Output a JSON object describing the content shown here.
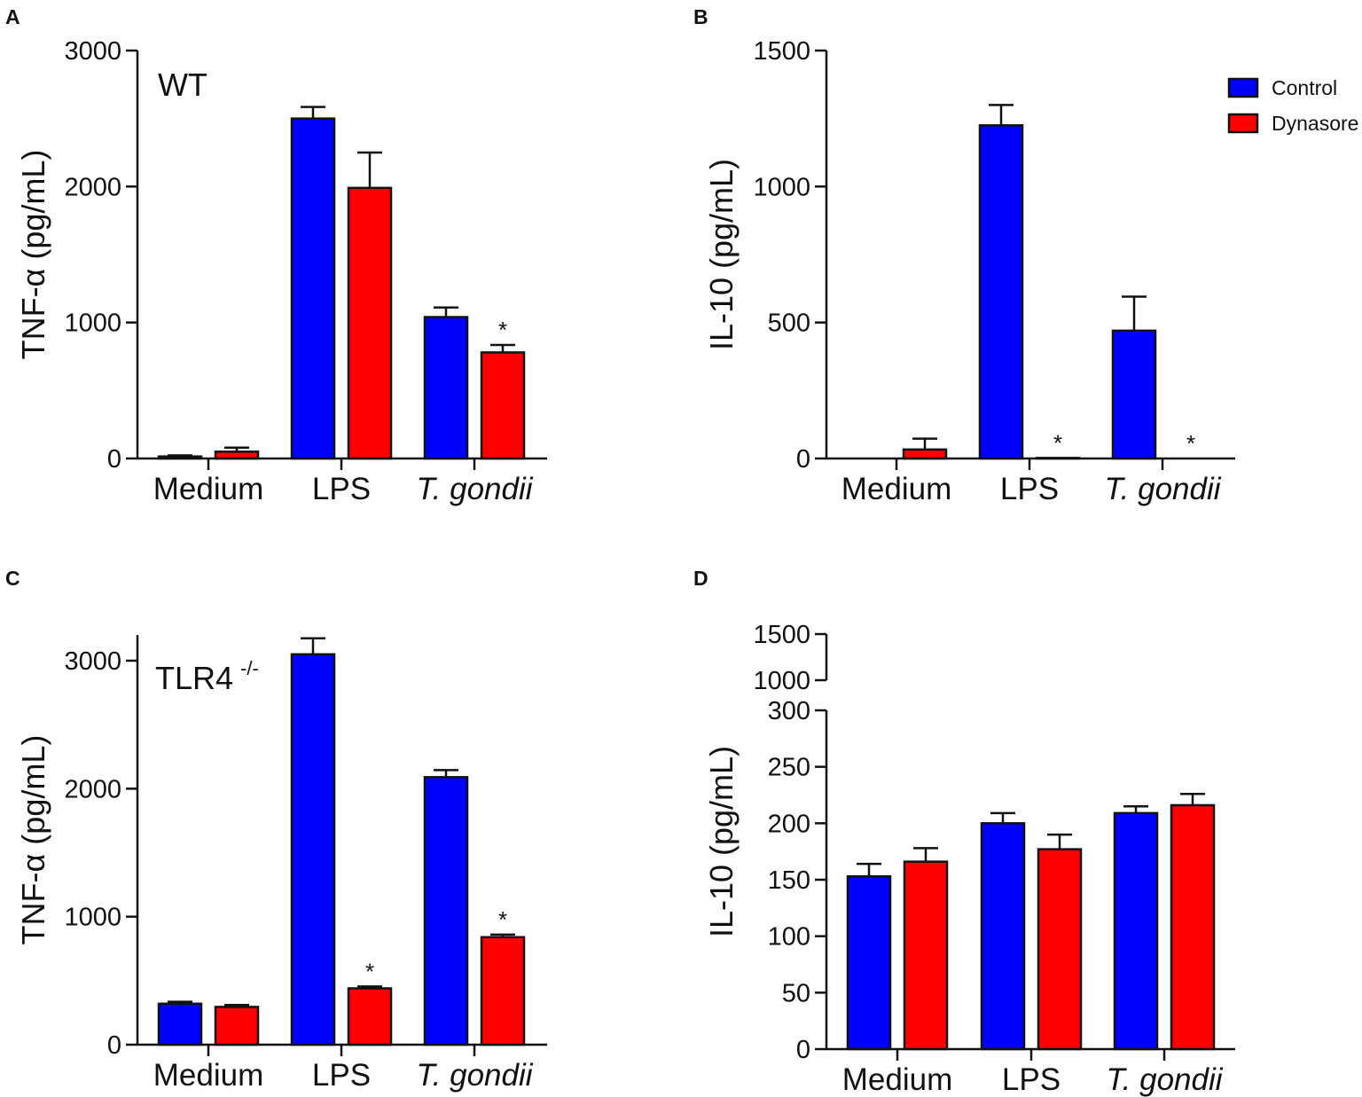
{
  "colors": {
    "control": "#0000ff",
    "dynasore": "#ff0000",
    "axis": "#111111"
  },
  "legend": {
    "entries": [
      "Control",
      "Dynasore"
    ],
    "placement": "top-right"
  },
  "chart_data": [
    {
      "panel": "A",
      "type": "bar",
      "annotation": "WT",
      "annotation_sup": "",
      "ylabel": "TNF-α (pg/mL)",
      "ylim": [
        0,
        3000
      ],
      "yticks": [
        0,
        1000,
        2000,
        3000
      ],
      "ytick_labels": [
        "0",
        "1000",
        "2000",
        "3000"
      ],
      "categories": [
        "Medium",
        "LPS",
        "T. gondii"
      ],
      "category_italic": [
        false,
        false,
        true
      ],
      "series": [
        {
          "name": "Control",
          "values": [
            15,
            2500,
            1040
          ],
          "errors": [
            8,
            85,
            70
          ],
          "stars": [
            "",
            "",
            ""
          ]
        },
        {
          "name": "Dynasore",
          "values": [
            50,
            1990,
            780
          ],
          "errors": [
            30,
            260,
            55
          ],
          "stars": [
            "",
            "",
            "*"
          ]
        }
      ]
    },
    {
      "panel": "B",
      "type": "bar",
      "annotation": "",
      "annotation_sup": "",
      "ylabel": "IL-10 (pg/mL)",
      "ylim": [
        0,
        1500
      ],
      "yticks": [
        0,
        500,
        1000,
        1500
      ],
      "ytick_labels": [
        "0",
        "500",
        "1000",
        "1500"
      ],
      "categories": [
        "Medium",
        "LPS",
        "T. gondii"
      ],
      "category_italic": [
        false,
        false,
        true
      ],
      "series": [
        {
          "name": "Control",
          "values": [
            0,
            1225,
            470
          ],
          "errors": [
            0,
            75,
            125
          ],
          "stars": [
            "",
            "",
            ""
          ]
        },
        {
          "name": "Dynasore",
          "values": [
            33,
            2,
            0
          ],
          "errors": [
            40,
            0,
            0
          ],
          "stars": [
            "",
            "*",
            "*"
          ]
        }
      ]
    },
    {
      "panel": "C",
      "type": "bar",
      "annotation": "TLR4",
      "annotation_sup": "-/-",
      "ylabel": "TNF-α (pg/mL)",
      "ylim": [
        0,
        3200
      ],
      "yticks": [
        0,
        1000,
        2000,
        3000
      ],
      "ytick_labels": [
        "0",
        "1000",
        "2000",
        "3000"
      ],
      "categories": [
        "Medium",
        "LPS",
        "T. gondii"
      ],
      "category_italic": [
        false,
        false,
        true
      ],
      "series": [
        {
          "name": "Control",
          "values": [
            320,
            3050,
            2090
          ],
          "errors": [
            15,
            125,
            55
          ],
          "stars": [
            "",
            "",
            ""
          ]
        },
        {
          "name": "Dynasore",
          "values": [
            295,
            440,
            840
          ],
          "errors": [
            15,
            15,
            20
          ],
          "stars": [
            "",
            "*",
            "*"
          ]
        }
      ]
    },
    {
      "panel": "D",
      "type": "bar",
      "annotation": "",
      "annotation_sup": "",
      "ylabel": "IL-10 (pg/mL)",
      "ylim": [
        0,
        300
      ],
      "yticks": [
        0,
        50,
        100,
        150,
        200,
        250,
        300
      ],
      "ytick_labels": [
        "0",
        "50",
        "100",
        "150",
        "200",
        "250",
        "300"
      ],
      "axis_break_upper_ticks": [
        "1000",
        "1500"
      ],
      "categories": [
        "Medium",
        "LPS",
        "T. gondii"
      ],
      "category_italic": [
        false,
        false,
        true
      ],
      "series": [
        {
          "name": "Control",
          "values": [
            153,
            200,
            209
          ],
          "errors": [
            11,
            9,
            6
          ],
          "stars": [
            "",
            "",
            ""
          ]
        },
        {
          "name": "Dynasore",
          "values": [
            166,
            177,
            216
          ],
          "errors": [
            12,
            13,
            10
          ],
          "stars": [
            "",
            "",
            ""
          ]
        }
      ]
    }
  ]
}
